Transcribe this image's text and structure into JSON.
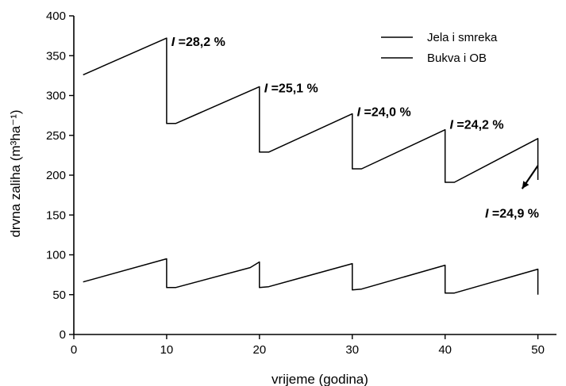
{
  "chart_data": {
    "type": "line",
    "xlabel": "vrijeme (godina)",
    "ylabel": "drvna zaliha (m³ha⁻¹)",
    "xlim": [
      0,
      52
    ],
    "ylim": [
      0,
      400
    ],
    "xticks": [
      0,
      10,
      20,
      30,
      40,
      50
    ],
    "yticks": [
      0,
      50,
      100,
      150,
      200,
      250,
      300,
      350,
      400
    ],
    "legend": "top-right",
    "grid": false,
    "series": [
      {
        "name": "Jela i smreka",
        "color": "#000000",
        "points": [
          [
            1,
            326
          ],
          [
            10,
            372
          ],
          [
            10,
            265
          ],
          [
            11,
            265
          ],
          [
            20,
            311
          ],
          [
            20,
            229
          ],
          [
            21,
            229
          ],
          [
            30,
            277
          ],
          [
            30,
            208
          ],
          [
            31,
            208
          ],
          [
            40,
            257
          ],
          [
            40,
            191
          ],
          [
            41,
            191
          ],
          [
            50,
            246
          ],
          [
            50,
            194
          ]
        ]
      },
      {
        "name": "Bukva i OB",
        "color": "#000000",
        "points": [
          [
            1,
            66
          ],
          [
            10,
            95
          ],
          [
            10,
            59
          ],
          [
            11,
            59
          ],
          [
            19,
            84
          ],
          [
            20,
            91
          ],
          [
            20,
            59
          ],
          [
            21,
            60
          ],
          [
            30,
            89
          ],
          [
            30,
            56
          ],
          [
            31,
            57
          ],
          [
            40,
            87
          ],
          [
            40,
            52
          ],
          [
            41,
            52
          ],
          [
            50,
            82
          ],
          [
            50,
            50
          ]
        ]
      }
    ],
    "annotations": [
      {
        "i": "I",
        "text": " =28,2 %",
        "x": 10.5,
        "y": 362
      },
      {
        "i": "I",
        "text": " =25,1 %",
        "x": 20.5,
        "y": 304
      },
      {
        "i": "I",
        "text": " =24,0 %",
        "x": 30.5,
        "y": 274
      },
      {
        "i": "I",
        "text": " =24,2 %",
        "x": 40.5,
        "y": 258
      },
      {
        "i": "I",
        "text": " =24,9 %",
        "x": 44.3,
        "y": 147
      }
    ],
    "arrow": {
      "from": [
        50,
        212
      ],
      "to": [
        48.3,
        183
      ]
    }
  }
}
